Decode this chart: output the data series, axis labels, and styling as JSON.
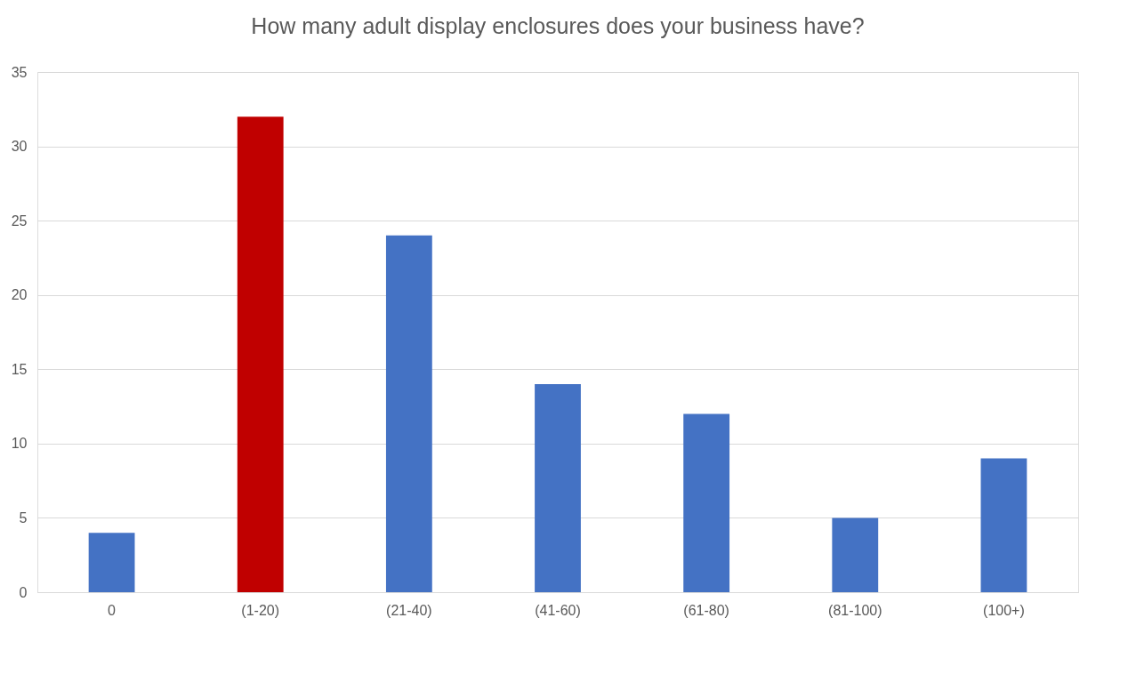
{
  "chart_data": {
    "type": "bar",
    "title": "How many adult display enclosures does your business have?",
    "categories": [
      "0",
      "(1-20)",
      "(21-40)",
      "(41-60)",
      "(61-80)",
      "(81-100)",
      "(100+)"
    ],
    "values": [
      4,
      32,
      24,
      14,
      12,
      5,
      9
    ],
    "colors": [
      "#4472c4",
      "#c00000",
      "#4472c4",
      "#4472c4",
      "#4472c4",
      "#4472c4",
      "#4472c4"
    ],
    "ylim": [
      0,
      35
    ],
    "yticks": [
      0,
      5,
      10,
      15,
      20,
      25,
      30,
      35
    ],
    "grid": "y"
  }
}
